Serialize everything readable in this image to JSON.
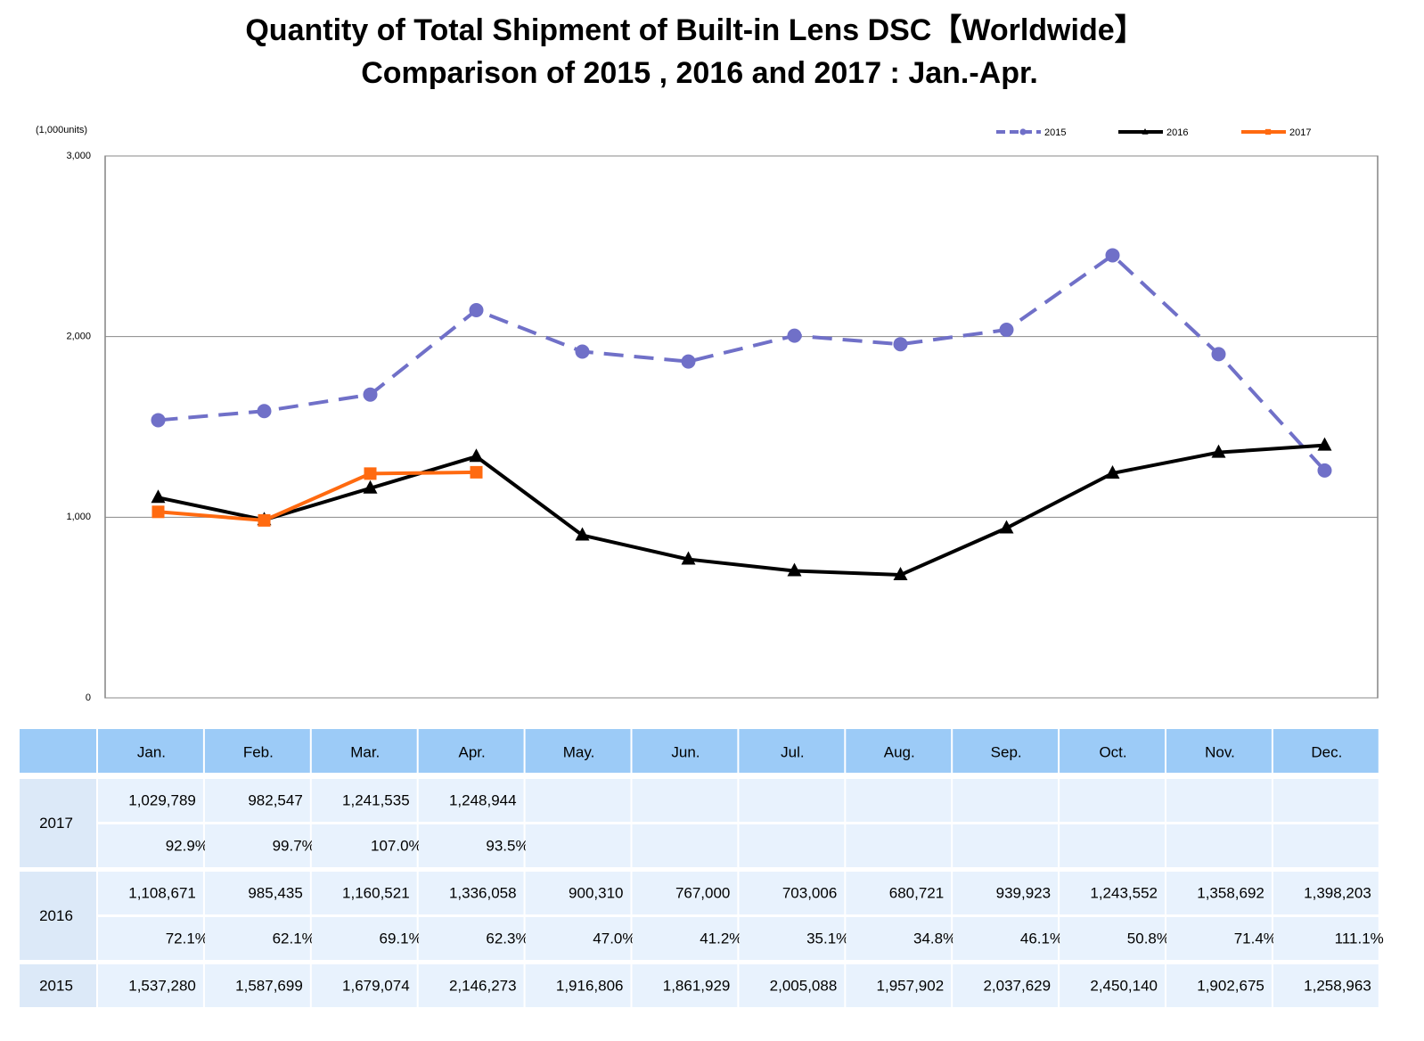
{
  "chart_data": {
    "type": "line",
    "title": "Quantity of Total Shipment of Built-in Lens DSC【Worldwide】",
    "subtitle": "Comparison of 2015 , 2016 and 2017 : Jan.-Apr.",
    "y_unit_label": "(1,000units)",
    "categories": [
      "Jan.",
      "Feb.",
      "Mar.",
      "Apr.",
      "May.",
      "Jun.",
      "Jul.",
      "Aug.",
      "Sep.",
      "Oct.",
      "Nov.",
      "Dec."
    ],
    "ylim": [
      0,
      3000
    ],
    "yticks": [
      0,
      {
        "value": 1000,
        "label": "1,000"
      },
      {
        "value": 2000,
        "label": "2,000"
      },
      {
        "value": 3000,
        "label": "3,000"
      }
    ],
    "grid": true,
    "legend": "top-right",
    "series": [
      {
        "name": "2015",
        "color": "#7070c8",
        "dashed": true,
        "marker": "circle",
        "values": [
          1537.28,
          1587.699,
          1679.074,
          2146.273,
          1916.806,
          1861.929,
          2005.088,
          1957.902,
          2037.629,
          2450.14,
          1902.675,
          1258.963
        ],
        "value_labels": [
          "1,537,280",
          "1,587,699",
          "1,679,074",
          "2,146,273",
          "1,916,806",
          "1,861,929",
          "2,005,088",
          "1,957,902",
          "2,037,629",
          "2,450,140",
          "1,902,675",
          "1,258,963"
        ]
      },
      {
        "name": "2016",
        "color": "#000000",
        "marker": "triangle",
        "values": [
          1108.671,
          985.435,
          1160.521,
          1336.058,
          900.31,
          767.0,
          703.006,
          680.721,
          939.923,
          1243.552,
          1358.692,
          1398.203
        ],
        "value_labels": [
          "1,108,671",
          "985,435",
          "1,160,521",
          "1,336,058",
          "900,310",
          "767,000",
          "703,006",
          "680,721",
          "939,923",
          "1,243,552",
          "1,358,692",
          "1,398,203"
        ],
        "ratio_labels": [
          "72.1%",
          "62.1%",
          "69.1%",
          "62.3%",
          "47.0%",
          "41.2%",
          "35.1%",
          "34.8%",
          "46.1%",
          "50.8%",
          "71.4%",
          "111.1%"
        ]
      },
      {
        "name": "2017",
        "color": "#ff6a10",
        "marker": "square",
        "values": [
          1029.789,
          982.547,
          1241.535,
          1248.944,
          null,
          null,
          null,
          null,
          null,
          null,
          null,
          null
        ],
        "value_labels": [
          "1,029,789",
          "982,547",
          "1,241,535",
          "1,248,944",
          null,
          null,
          null,
          null,
          null,
          null,
          null,
          null
        ],
        "ratio_labels": [
          "92.9%",
          "99.7%",
          "107.0%",
          "93.5%",
          null,
          null,
          null,
          null,
          null,
          null,
          null,
          null
        ]
      }
    ]
  }
}
